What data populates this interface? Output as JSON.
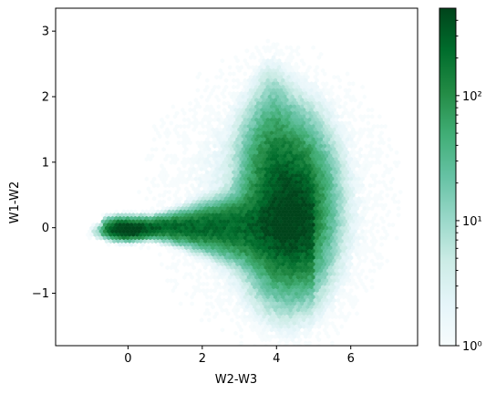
{
  "chart_data": {
    "type": "hexbin",
    "xlabel": "W2-W3",
    "ylabel": "W1-W2",
    "xlim": [
      -1.95,
      7.8
    ],
    "ylim": [
      -1.8,
      3.35
    ],
    "xticks": [
      0,
      2,
      4,
      6
    ],
    "xtick_labels": [
      "0",
      "2",
      "4",
      "6"
    ],
    "yticks": [
      -1,
      0,
      1,
      2,
      3
    ],
    "ytick_labels": [
      "−1",
      "0",
      "1",
      "2",
      "3"
    ],
    "colormap": "BuGn",
    "colors": {
      "low": "#f7fcfd",
      "mid": "#66c2a4",
      "high": "#00441b"
    },
    "colorbar": {
      "scale": "log",
      "range": [
        1,
        500
      ],
      "ticks": [
        1,
        10,
        100
      ],
      "tick_labels": [
        "10⁰",
        "10¹",
        "10²"
      ]
    },
    "density_features": [
      {
        "name": "horizontal branch",
        "x_range": [
          -0.5,
          3.5
        ],
        "y_center": 0.0,
        "max_count": 300
      },
      {
        "name": "peak at origin",
        "x": 0.0,
        "y": -0.05,
        "max_count": 500
      },
      {
        "name": "main clump",
        "x": 4.3,
        "y": 0.3,
        "max_count": 450
      },
      {
        "name": "upper tail",
        "x": 3.9,
        "y": 1.8,
        "max_count": 10
      }
    ]
  }
}
